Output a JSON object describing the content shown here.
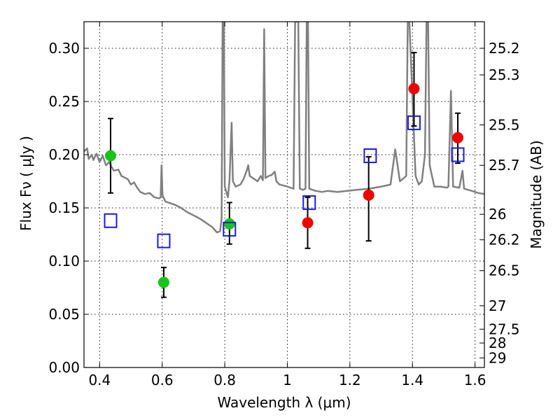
{
  "chart_data": {
    "type": "scatter",
    "xlabel": "Wavelength  λ (μm)",
    "ylabel": "Flux  Fν  ( μJy )",
    "y2label": "Magnitude (AB)",
    "xlim": [
      0.35,
      1.63
    ],
    "ylim": [
      0.0,
      0.325
    ],
    "grid": true,
    "x_ticks": [
      0.4,
      0.6,
      0.8,
      1.0,
      1.2,
      1.4,
      1.6
    ],
    "x_tick_labels": [
      "0.4",
      "0.6",
      "0.8",
      "1",
      "1.2",
      "1.4",
      "1.6"
    ],
    "y_ticks": [
      0.0,
      0.05,
      0.1,
      0.15,
      0.2,
      0.25,
      0.3
    ],
    "y_tick_labels": [
      "0.00",
      "0.05",
      "0.10",
      "0.15",
      "0.20",
      "0.25",
      "0.30"
    ],
    "y2_ticks": [
      {
        "label": "25.2",
        "flux": 0.3
      },
      {
        "label": "25.3",
        "flux": 0.275
      },
      {
        "label": "25.5",
        "flux": 0.228
      },
      {
        "label": "25.7",
        "flux": 0.19
      },
      {
        "label": "26",
        "flux": 0.144
      },
      {
        "label": "26.2",
        "flux": 0.12
      },
      {
        "label": "26.5",
        "flux": 0.091
      },
      {
        "label": "27",
        "flux": 0.058
      },
      {
        "label": "27.5",
        "flux": 0.036
      },
      {
        "label": "28",
        "flux": 0.023
      },
      {
        "label": "29",
        "flux": 0.009
      }
    ],
    "series": [
      {
        "kind": "line",
        "color": "#808080",
        "points": [
          [
            0.35,
            0.203
          ],
          [
            0.36,
            0.206
          ],
          [
            0.365,
            0.196
          ],
          [
            0.375,
            0.2
          ],
          [
            0.38,
            0.195
          ],
          [
            0.39,
            0.201
          ],
          [
            0.4,
            0.193
          ],
          [
            0.41,
            0.199
          ],
          [
            0.42,
            0.19
          ],
          [
            0.43,
            0.193
          ],
          [
            0.445,
            0.185
          ],
          [
            0.46,
            0.186
          ],
          [
            0.47,
            0.18
          ],
          [
            0.49,
            0.177
          ],
          [
            0.5,
            0.172
          ],
          [
            0.51,
            0.174
          ],
          [
            0.52,
            0.169
          ],
          [
            0.53,
            0.165
          ],
          [
            0.545,
            0.163
          ],
          [
            0.56,
            0.164
          ],
          [
            0.575,
            0.16
          ],
          [
            0.59,
            0.159
          ],
          [
            0.595,
            0.16
          ],
          [
            0.598,
            0.19
          ],
          [
            0.601,
            0.162
          ],
          [
            0.61,
            0.156
          ],
          [
            0.64,
            0.153
          ],
          [
            0.66,
            0.15
          ],
          [
            0.68,
            0.146
          ],
          [
            0.7,
            0.143
          ],
          [
            0.72,
            0.14
          ],
          [
            0.74,
            0.136
          ],
          [
            0.76,
            0.132
          ],
          [
            0.775,
            0.127
          ],
          [
            0.785,
            0.128
          ],
          [
            0.79,
            0.14
          ],
          [
            0.793,
            0.325
          ],
          [
            0.797,
            0.325
          ],
          [
            0.8,
            0.17
          ],
          [
            0.81,
            0.16
          ],
          [
            0.815,
            0.175
          ],
          [
            0.822,
            0.23
          ],
          [
            0.826,
            0.175
          ],
          [
            0.835,
            0.17
          ],
          [
            0.85,
            0.172
          ],
          [
            0.86,
            0.177
          ],
          [
            0.87,
            0.185
          ],
          [
            0.875,
            0.19
          ],
          [
            0.88,
            0.18
          ],
          [
            0.89,
            0.178
          ],
          [
            0.905,
            0.175
          ],
          [
            0.915,
            0.18
          ],
          [
            0.922,
            0.176
          ],
          [
            0.926,
            0.318
          ],
          [
            0.93,
            0.178
          ],
          [
            0.94,
            0.18
          ],
          [
            0.95,
            0.181
          ],
          [
            0.96,
            0.184
          ],
          [
            0.965,
            0.175
          ],
          [
            0.975,
            0.172
          ],
          [
            1.0,
            0.17
          ],
          [
            1.02,
            0.168
          ],
          [
            1.025,
            0.325
          ],
          [
            1.035,
            0.325
          ],
          [
            1.04,
            0.168
          ],
          [
            1.05,
            0.167
          ],
          [
            1.058,
            0.168
          ],
          [
            1.062,
            0.325
          ],
          [
            1.066,
            0.325
          ],
          [
            1.07,
            0.168
          ],
          [
            1.09,
            0.166
          ],
          [
            1.11,
            0.165
          ],
          [
            1.13,
            0.166
          ],
          [
            1.16,
            0.165
          ],
          [
            1.19,
            0.166
          ],
          [
            1.22,
            0.167
          ],
          [
            1.26,
            0.168
          ],
          [
            1.3,
            0.17
          ],
          [
            1.33,
            0.172
          ],
          [
            1.345,
            0.205
          ],
          [
            1.36,
            0.175
          ],
          [
            1.38,
            0.18
          ],
          [
            1.385,
            0.325
          ],
          [
            1.39,
            0.325
          ],
          [
            1.395,
            0.29
          ],
          [
            1.41,
            0.18
          ],
          [
            1.42,
            0.172
          ],
          [
            1.43,
            0.175
          ],
          [
            1.44,
            0.2
          ],
          [
            1.445,
            0.325
          ],
          [
            1.45,
            0.325
          ],
          [
            1.455,
            0.19
          ],
          [
            1.47,
            0.17
          ],
          [
            1.49,
            0.17
          ],
          [
            1.51,
            0.169
          ],
          [
            1.515,
            0.17
          ],
          [
            1.523,
            0.26
          ],
          [
            1.53,
            0.17
          ],
          [
            1.55,
            0.169
          ],
          [
            1.56,
            0.185
          ],
          [
            1.565,
            0.168
          ],
          [
            1.59,
            0.166
          ],
          [
            1.61,
            0.164
          ],
          [
            1.63,
            0.163
          ]
        ]
      },
      {
        "kind": "errorbar",
        "marker": "circle",
        "color": "#18c418",
        "points": [
          {
            "x": 0.435,
            "y": 0.199,
            "ylo": 0.164,
            "yhi": 0.234
          },
          {
            "x": 0.605,
            "y": 0.08,
            "ylo": 0.066,
            "yhi": 0.094
          },
          {
            "x": 0.815,
            "y": 0.135,
            "ylo": 0.116,
            "yhi": 0.155
          }
        ]
      },
      {
        "kind": "errorbar",
        "marker": "circle",
        "color": "#ee0000",
        "points": [
          {
            "x": 1.065,
            "y": 0.136,
            "ylo": 0.112,
            "yhi": 0.16
          },
          {
            "x": 1.26,
            "y": 0.162,
            "ylo": 0.119,
            "yhi": 0.198
          },
          {
            "x": 1.405,
            "y": 0.262,
            "ylo": 0.227,
            "yhi": 0.296
          },
          {
            "x": 1.545,
            "y": 0.216,
            "ylo": 0.192,
            "yhi": 0.239
          }
        ]
      },
      {
        "kind": "scatter",
        "marker": "square-open",
        "color": "#1a1ae6",
        "points": [
          {
            "x": 0.435,
            "y": 0.138
          },
          {
            "x": 0.605,
            "y": 0.119
          },
          {
            "x": 0.815,
            "y": 0.13
          },
          {
            "x": 1.07,
            "y": 0.155
          },
          {
            "x": 1.265,
            "y": 0.199
          },
          {
            "x": 1.405,
            "y": 0.23
          },
          {
            "x": 1.545,
            "y": 0.2
          }
        ]
      }
    ]
  }
}
